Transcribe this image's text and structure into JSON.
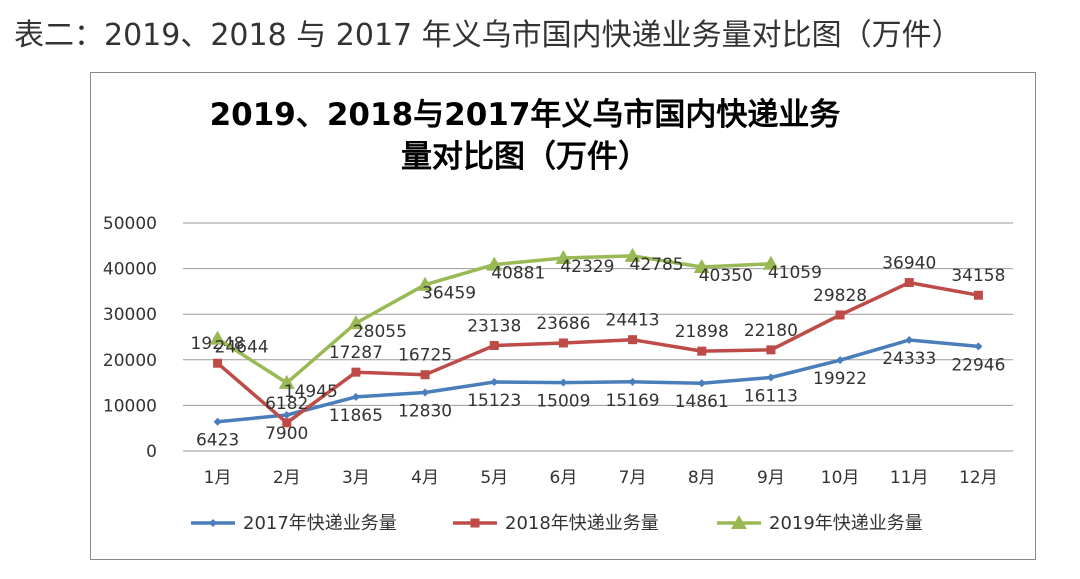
{
  "caption": "表二：2019、2018 与 2017 年义乌市国内快递业务量对比图（万件）",
  "chart_data": {
    "type": "line",
    "title_lines": [
      "2019、2018与2017年义乌市国内快递业务",
      "量对比图（万件）"
    ],
    "categories": [
      "1月",
      "2月",
      "3月",
      "4月",
      "5月",
      "6月",
      "7月",
      "8月",
      "9月",
      "10月",
      "11月",
      "12月"
    ],
    "ylim": [
      0,
      50000
    ],
    "yticks": [
      0,
      10000,
      20000,
      30000,
      40000,
      50000
    ],
    "grid": true,
    "legend_position": "bottom",
    "series": [
      {
        "name": "2017年快递业务量",
        "color": "#4A7EBB",
        "marker": "diamond",
        "values": [
          6423,
          7900,
          11865,
          12830,
          15123,
          15009,
          15169,
          14861,
          16113,
          19922,
          24333,
          22946
        ]
      },
      {
        "name": "2018年快递业务量",
        "color": "#BE4B48",
        "marker": "square",
        "values": [
          19248,
          6182,
          17287,
          16725,
          23138,
          23686,
          24413,
          21898,
          22180,
          29828,
          36940,
          34158
        ]
      },
      {
        "name": "2019年快递业务量",
        "color": "#98B954",
        "marker": "triangle",
        "values": [
          24644,
          14945,
          28055,
          36459,
          40881,
          42329,
          42785,
          40350,
          41059,
          null,
          null,
          null
        ]
      }
    ]
  }
}
